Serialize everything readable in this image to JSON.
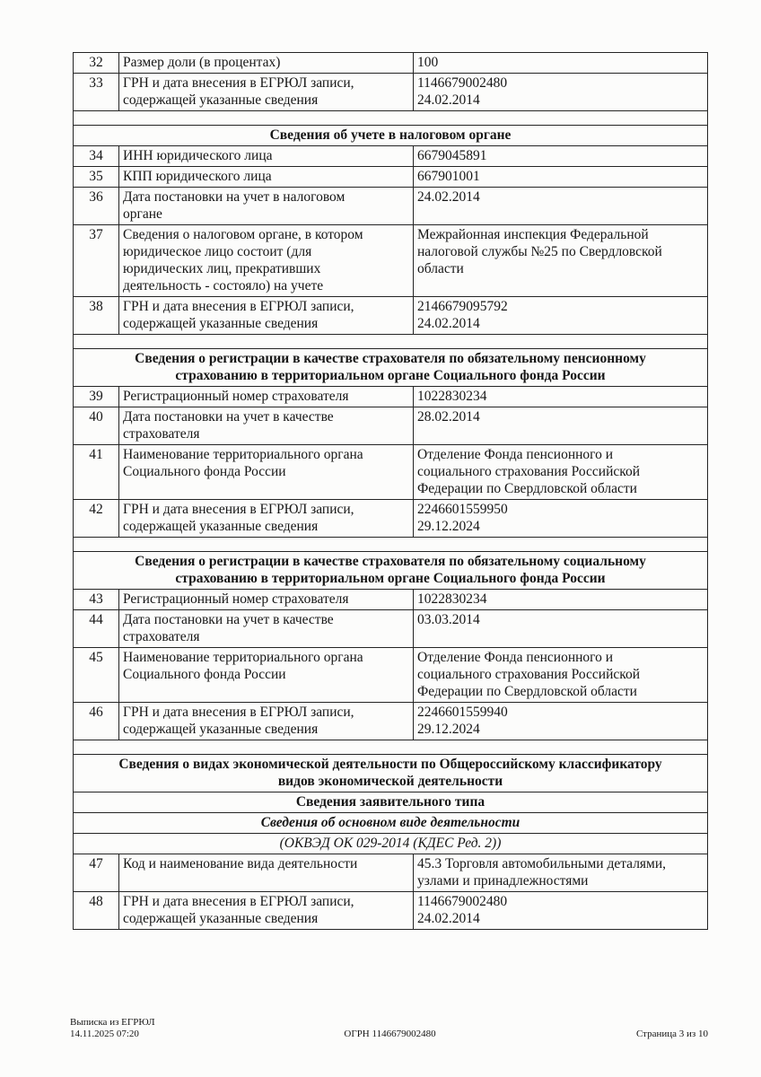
{
  "colors": {
    "background": "#fcfcfb",
    "text": "#161616",
    "border": "#242424"
  },
  "footer": {
    "doc_type": "Выписка из ЕГРЮЛ",
    "generated_at": "14.11.2025 07:20",
    "ogrn": "ОГРН 1146679002480",
    "page_info": "Страница 3 из 10"
  },
  "table": {
    "sections": [
      {
        "headers": [],
        "rows": [
          {
            "num": "32",
            "label": "Размер доли (в процентах)",
            "value": "100"
          },
          {
            "num": "33",
            "label": "ГРН и дата внесения в ЕГРЮЛ записи,\nсодержащей указанные сведения",
            "value": "1146679002480\n24.02.2014"
          }
        ]
      },
      {
        "headers": [
          {
            "text": "Сведения об учете в налоговом органе",
            "style": "bold"
          }
        ],
        "rows": [
          {
            "num": "34",
            "label": "ИНН юридического лица",
            "value": "6679045891"
          },
          {
            "num": "35",
            "label": "КПП юридического лица",
            "value": "667901001"
          },
          {
            "num": "36",
            "label": "Дата постановки на учет в налоговом\nоргане",
            "value": "24.02.2014"
          },
          {
            "num": "37",
            "label": "Сведения о налоговом органе, в котором\nюридическое лицо состоит (для\nюридических лиц, прекративших\nдеятельность - состояло) на учете",
            "value": "Межрайонная инспекция Федеральной\nналоговой службы №25 по Свердловской\nобласти"
          },
          {
            "num": "38",
            "label": "ГРН и дата внесения в ЕГРЮЛ записи,\nсодержащей указанные сведения",
            "value": "2146679095792\n24.02.2014"
          }
        ]
      },
      {
        "headers": [
          {
            "text": "Сведения о регистрации в качестве страхователя по обязательному пенсионному\nстрахованию в территориальном органе Социального фонда России",
            "style": "bold"
          }
        ],
        "rows": [
          {
            "num": "39",
            "label": "Регистрационный номер страхователя",
            "value": "1022830234"
          },
          {
            "num": "40",
            "label": "Дата постановки на учет в качестве\nстрахователя",
            "value": "28.02.2014"
          },
          {
            "num": "41",
            "label": "Наименование территориального органа\nСоциального фонда России",
            "value": "Отделение Фонда пенсионного и\nсоциального страхования Российской\nФедерации по Свердловской области"
          },
          {
            "num": "42",
            "label": "ГРН и дата внесения в ЕГРЮЛ записи,\nсодержащей указанные сведения",
            "value": "2246601559950\n29.12.2024"
          }
        ]
      },
      {
        "headers": [
          {
            "text": "Сведения о регистрации в качестве страхователя по обязательному социальному\nстрахованию в территориальном органе Социального фонда России",
            "style": "bold"
          }
        ],
        "rows": [
          {
            "num": "43",
            "label": "Регистрационный номер страхователя",
            "value": "1022830234"
          },
          {
            "num": "44",
            "label": "Дата постановки на учет в качестве\nстрахователя",
            "value": "03.03.2014"
          },
          {
            "num": "45",
            "label": "Наименование территориального органа\nСоциального фонда России",
            "value": "Отделение Фонда пенсионного и\nсоциального страхования Российской\nФедерации по Свердловской области"
          },
          {
            "num": "46",
            "label": "ГРН и дата внесения в ЕГРЮЛ записи,\nсодержащей указанные сведения",
            "value": "2246601559940\n29.12.2024"
          }
        ]
      },
      {
        "headers": [
          {
            "text": "Сведения о видах экономической деятельности по Общероссийскому классификатору\nвидов экономической деятельности",
            "style": "bold"
          },
          {
            "text": "Сведения заявительного типа",
            "style": "bold"
          },
          {
            "text": "Сведения об основном виде деятельности",
            "style": "bold-italic"
          },
          {
            "text": "(ОКВЭД ОК 029-2014 (КДЕС Ред. 2))",
            "style": "italic"
          }
        ],
        "rows": [
          {
            "num": "47",
            "label": "Код и наименование вида деятельности",
            "value": "45.3 Торговля автомобильными деталями,\nузлами и принадлежностями"
          },
          {
            "num": "48",
            "label": "ГРН и дата внесения в ЕГРЮЛ записи,\nсодержащей указанные сведения",
            "value": "1146679002480\n24.02.2014"
          }
        ]
      }
    ]
  }
}
